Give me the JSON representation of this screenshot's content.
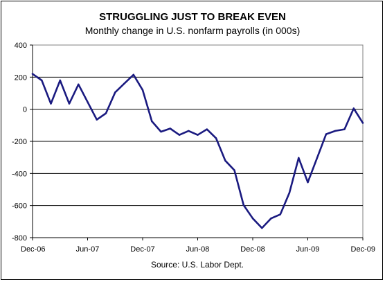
{
  "chart_data": {
    "type": "line",
    "title": "STRUGGLING JUST TO BREAK EVEN",
    "subtitle": "Monthly change in U.S. nonfarm payrolls (in 000s)",
    "source": "Source:  U.S. Labor Dept.",
    "xlabel": "",
    "ylabel": "",
    "ylim": [
      -800,
      400
    ],
    "y_ticks": [
      400,
      200,
      0,
      -200,
      -400,
      -600,
      -800
    ],
    "x_tick_labels": [
      "Dec-06",
      "Jun-07",
      "Dec-07",
      "Jun-08",
      "Dec-08",
      "Jun-09",
      "Dec-09"
    ],
    "grid": true,
    "legend": "none",
    "line_color": "#1a1a80",
    "x": [
      "Dec-06",
      "Jan-07",
      "Feb-07",
      "Mar-07",
      "Apr-07",
      "May-07",
      "Jun-07",
      "Jul-07",
      "Aug-07",
      "Sep-07",
      "Oct-07",
      "Nov-07",
      "Dec-07",
      "Jan-08",
      "Feb-08",
      "Mar-08",
      "Apr-08",
      "May-08",
      "Jun-08",
      "Jul-08",
      "Aug-08",
      "Sep-08",
      "Oct-08",
      "Nov-08",
      "Dec-08",
      "Jan-09",
      "Feb-09",
      "Mar-09",
      "Apr-09",
      "May-09",
      "Jun-09",
      "Jul-09",
      "Aug-09",
      "Sep-09",
      "Oct-09",
      "Nov-09",
      "Dec-09"
    ],
    "values": [
      220,
      180,
      35,
      180,
      35,
      155,
      45,
      -65,
      -25,
      105,
      160,
      215,
      120,
      -75,
      -140,
      -120,
      -160,
      -135,
      -160,
      -125,
      -180,
      -320,
      -380,
      -597,
      -680,
      -740,
      -680,
      -655,
      -520,
      -303,
      -455,
      -305,
      -155,
      -135,
      -125,
      5,
      -85
    ]
  }
}
